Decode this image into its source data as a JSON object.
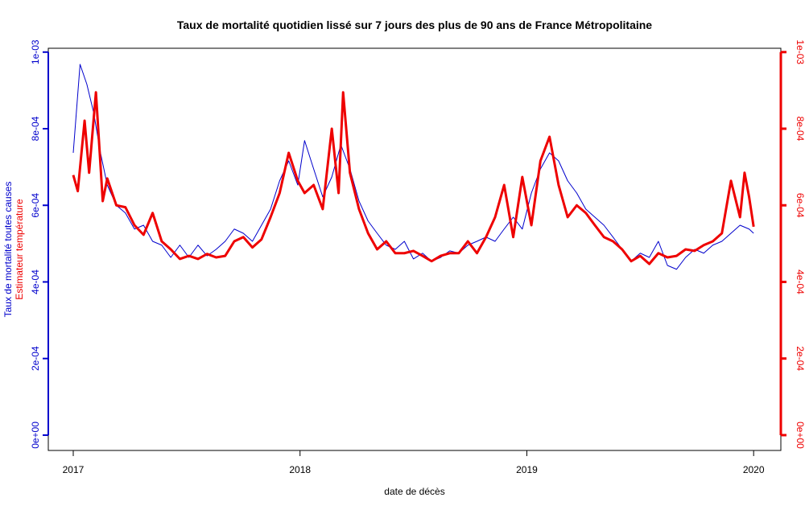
{
  "chart_data": {
    "type": "line",
    "title": "Taux de mortalité quotidien lissé sur 7 jours des plus de 90 ans de France Métropolitaine",
    "x_label": "date de décès",
    "xlim": [
      2016.89,
      2020.12
    ],
    "xticks": [
      2017,
      2018,
      2019,
      2020
    ],
    "ylim": [
      -4e-05,
      0.00101
    ],
    "yticks": [
      {
        "value": 0,
        "label": "0e+00"
      },
      {
        "value": 0.0002,
        "label": "2e-04"
      },
      {
        "value": 0.0004,
        "label": "4e-04"
      },
      {
        "value": 0.0006,
        "label": "6e-04"
      },
      {
        "value": 0.0008,
        "label": "8e-04"
      },
      {
        "value": 0.001,
        "label": "1e-03"
      }
    ],
    "y2lim": [
      -4e-05,
      0.00101
    ],
    "y2ticks": [
      {
        "value": 0,
        "label": "0e+00"
      },
      {
        "value": 0.0002,
        "label": "2e-04"
      },
      {
        "value": 0.0004,
        "label": "4e-04"
      },
      {
        "value": 0.0006,
        "label": "6e-04"
      },
      {
        "value": 0.0008,
        "label": "8e-04"
      },
      {
        "value": 0.001,
        "label": "1e-03"
      }
    ],
    "series": [
      {
        "name": "Taux de mortalité toutes causes",
        "color": "#0000cc",
        "axis": "y",
        "width": 1,
        "x": [
          2017.0,
          2017.03,
          2017.06,
          2017.09,
          2017.12,
          2017.15,
          2017.19,
          2017.23,
          2017.27,
          2017.31,
          2017.35,
          2017.39,
          2017.43,
          2017.47,
          2017.51,
          2017.55,
          2017.59,
          2017.63,
          2017.67,
          2017.71,
          2017.75,
          2017.79,
          2017.83,
          2017.87,
          2017.91,
          2017.95,
          2017.99,
          2018.02,
          2018.06,
          2018.1,
          2018.14,
          2018.18,
          2018.22,
          2018.26,
          2018.3,
          2018.34,
          2018.38,
          2018.42,
          2018.46,
          2018.5,
          2018.54,
          2018.58,
          2018.62,
          2018.66,
          2018.7,
          2018.74,
          2018.78,
          2018.82,
          2018.86,
          2018.9,
          2018.94,
          2018.98,
          2019.02,
          2019.06,
          2019.1,
          2019.14,
          2019.18,
          2019.22,
          2019.26,
          2019.3,
          2019.34,
          2019.38,
          2019.42,
          2019.46,
          2019.5,
          2019.54,
          2019.58,
          2019.62,
          2019.66,
          2019.7,
          2019.74,
          2019.78,
          2019.82,
          2019.86,
          2019.9,
          2019.94,
          2019.98,
          2020.0
        ],
        "values": [
          0.000737,
          0.000968,
          0.000916,
          0.000842,
          0.000737,
          0.000653,
          0.0006,
          0.00058,
          0.000538,
          0.000548,
          0.000506,
          0.000496,
          0.000464,
          0.000496,
          0.000464,
          0.000496,
          0.000468,
          0.000485,
          0.000506,
          0.000538,
          0.000527,
          0.000506,
          0.000548,
          0.00059,
          0.000664,
          0.000716,
          0.000653,
          0.000769,
          0.000695,
          0.000622,
          0.000674,
          0.000758,
          0.000695,
          0.000611,
          0.000559,
          0.000527,
          0.000496,
          0.000485,
          0.000506,
          0.00046,
          0.000475,
          0.000454,
          0.000464,
          0.000481,
          0.000475,
          0.000496,
          0.000506,
          0.000517,
          0.000506,
          0.000538,
          0.000569,
          0.000538,
          0.000632,
          0.000695,
          0.000737,
          0.000716,
          0.000664,
          0.000632,
          0.00059,
          0.000569,
          0.000548,
          0.000517,
          0.000485,
          0.000454,
          0.000475,
          0.000464,
          0.000506,
          0.000443,
          0.000433,
          0.000464,
          0.000485,
          0.000475,
          0.000496,
          0.000506,
          0.000527,
          0.000548,
          0.000538,
          0.000527
        ]
      },
      {
        "name": "Estimateur température",
        "color": "#ee0000",
        "axis": "y2",
        "width": 3,
        "x": [
          2017.0,
          2017.02,
          2017.05,
          2017.07,
          2017.1,
          2017.13,
          2017.15,
          2017.19,
          2017.23,
          2017.27,
          2017.31,
          2017.35,
          2017.39,
          2017.43,
          2017.47,
          2017.51,
          2017.55,
          2017.59,
          2017.63,
          2017.67,
          2017.71,
          2017.75,
          2017.79,
          2017.83,
          2017.87,
          2017.91,
          2017.95,
          2017.99,
          2018.02,
          2018.06,
          2018.1,
          2018.14,
          2018.17,
          2018.19,
          2018.22,
          2018.26,
          2018.3,
          2018.34,
          2018.38,
          2018.42,
          2018.46,
          2018.5,
          2018.54,
          2018.58,
          2018.62,
          2018.66,
          2018.7,
          2018.74,
          2018.78,
          2018.82,
          2018.86,
          2018.9,
          2018.94,
          2018.98,
          2019.02,
          2019.06,
          2019.1,
          2019.14,
          2019.18,
          2019.22,
          2019.26,
          2019.3,
          2019.34,
          2019.38,
          2019.42,
          2019.46,
          2019.5,
          2019.54,
          2019.58,
          2019.62,
          2019.66,
          2019.7,
          2019.74,
          2019.78,
          2019.82,
          2019.86,
          2019.9,
          2019.94,
          2019.96,
          2019.98,
          2020.0
        ],
        "values": [
          0.000679,
          0.000637,
          0.000821,
          0.000685,
          0.000895,
          0.000611,
          0.00067,
          0.0006,
          0.000595,
          0.000548,
          0.000523,
          0.00058,
          0.000506,
          0.000485,
          0.00046,
          0.000468,
          0.00046,
          0.000473,
          0.000464,
          0.000468,
          0.000506,
          0.000517,
          0.00049,
          0.000511,
          0.000569,
          0.000632,
          0.000737,
          0.000664,
          0.000632,
          0.000653,
          0.00059,
          0.0008,
          0.000632,
          0.000895,
          0.000685,
          0.00059,
          0.000527,
          0.000485,
          0.000506,
          0.000475,
          0.000475,
          0.000481,
          0.000468,
          0.000454,
          0.000468,
          0.000475,
          0.000475,
          0.000506,
          0.000475,
          0.000517,
          0.000569,
          0.000653,
          0.000517,
          0.000674,
          0.000548,
          0.000716,
          0.000779,
          0.000653,
          0.000569,
          0.0006,
          0.00058,
          0.000548,
          0.000517,
          0.000506,
          0.000485,
          0.000454,
          0.000468,
          0.000447,
          0.000475,
          0.000464,
          0.000468,
          0.000485,
          0.000481,
          0.000496,
          0.000506,
          0.000527,
          0.000664,
          0.000569,
          0.000685,
          0.000622,
          0.000544
        ]
      }
    ]
  }
}
